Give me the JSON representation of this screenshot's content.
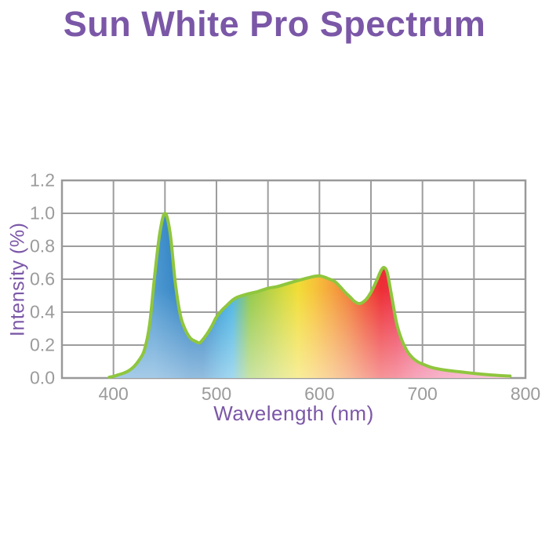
{
  "title": "Sun White Pro Spectrum",
  "colors": {
    "title_text": "#7B57A7",
    "axis_title_text": "#7B57A7",
    "tick_text": "#9B9B9B",
    "grid_line": "#9D9D9D",
    "plot_border": "#999999",
    "curve_stroke": "#8FC63E",
    "background": "#FFFFFF"
  },
  "chart_data": {
    "type": "area",
    "title": "Sun White Pro Spectrum",
    "xlabel": "Wavelength (nm)",
    "ylabel": "Intensity (%)",
    "xlim": [
      350,
      800
    ],
    "ylim": [
      0,
      1.2
    ],
    "x_ticks": [
      400,
      500,
      600,
      700,
      800
    ],
    "y_ticks": [
      0.0,
      0.2,
      0.4,
      0.6,
      0.8,
      1.0,
      1.2
    ],
    "x_grid_step_nm": 50,
    "y_grid_step": 0.2,
    "grid": true,
    "legend": false,
    "series": [
      {
        "name": "intensity",
        "points": [
          [
            396,
            0.005
          ],
          [
            400,
            0.01
          ],
          [
            405,
            0.02
          ],
          [
            410,
            0.03
          ],
          [
            415,
            0.045
          ],
          [
            420,
            0.07
          ],
          [
            425,
            0.11
          ],
          [
            430,
            0.17
          ],
          [
            435,
            0.32
          ],
          [
            440,
            0.62
          ],
          [
            445,
            0.88
          ],
          [
            450,
            1.0
          ],
          [
            455,
            0.88
          ],
          [
            460,
            0.58
          ],
          [
            465,
            0.38
          ],
          [
            470,
            0.29
          ],
          [
            475,
            0.24
          ],
          [
            480,
            0.222
          ],
          [
            484,
            0.215
          ],
          [
            490,
            0.26
          ],
          [
            495,
            0.31
          ],
          [
            500,
            0.37
          ],
          [
            505,
            0.41
          ],
          [
            510,
            0.44
          ],
          [
            515,
            0.47
          ],
          [
            520,
            0.49
          ],
          [
            530,
            0.51
          ],
          [
            540,
            0.525
          ],
          [
            550,
            0.545
          ],
          [
            560,
            0.557
          ],
          [
            575,
            0.585
          ],
          [
            590,
            0.61
          ],
          [
            600,
            0.62
          ],
          [
            610,
            0.6
          ],
          [
            615,
            0.585
          ],
          [
            620,
            0.555
          ],
          [
            625,
            0.52
          ],
          [
            630,
            0.49
          ],
          [
            634,
            0.465
          ],
          [
            639,
            0.452
          ],
          [
            645,
            0.475
          ],
          [
            650,
            0.52
          ],
          [
            655,
            0.585
          ],
          [
            660,
            0.655
          ],
          [
            663,
            0.67
          ],
          [
            666,
            0.635
          ],
          [
            670,
            0.5
          ],
          [
            675,
            0.33
          ],
          [
            680,
            0.23
          ],
          [
            685,
            0.165
          ],
          [
            690,
            0.125
          ],
          [
            695,
            0.1
          ],
          [
            700,
            0.085
          ],
          [
            710,
            0.062
          ],
          [
            720,
            0.05
          ],
          [
            730,
            0.042
          ],
          [
            740,
            0.035
          ],
          [
            750,
            0.028
          ],
          [
            760,
            0.022
          ],
          [
            770,
            0.017
          ],
          [
            780,
            0.013
          ],
          [
            785,
            0.012
          ]
        ]
      }
    ],
    "spectrum_fill_gradient": [
      [
        400,
        "#4493CE"
      ],
      [
        440,
        "#1E76BD"
      ],
      [
        455,
        "#1B74BC"
      ],
      [
        475,
        "#2E9BD6"
      ],
      [
        488,
        "#3DAEE1"
      ],
      [
        508,
        "#8DC63F"
      ],
      [
        520,
        "#A3CA3C"
      ],
      [
        545,
        "#D1D732"
      ],
      [
        562,
        "#F0DB2A"
      ],
      [
        580,
        "#F6C12D"
      ],
      [
        600,
        "#F49D31"
      ],
      [
        618,
        "#F07A2E"
      ],
      [
        638,
        "#EE4727"
      ],
      [
        655,
        "#EC2127"
      ],
      [
        672,
        "#EC2540"
      ],
      [
        695,
        "#ED4672"
      ],
      [
        720,
        "#EF5F8D"
      ],
      [
        750,
        "#F073A0"
      ],
      [
        785,
        "#F287B2"
      ]
    ]
  }
}
